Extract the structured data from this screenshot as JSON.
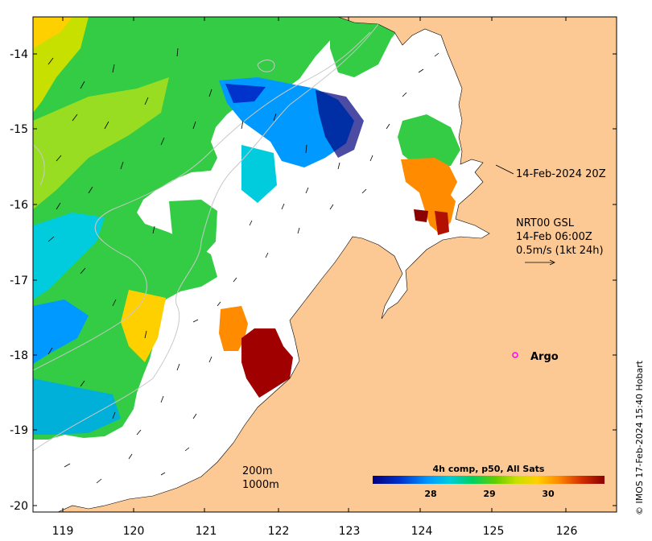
{
  "axes": {
    "x_ticks": [
      "119",
      "120",
      "121",
      "122",
      "123",
      "124",
      "125",
      "126"
    ],
    "y_ticks": [
      "-14",
      "-15",
      "-16",
      "-17",
      "-18",
      "-19",
      "-20"
    ]
  },
  "annotations": {
    "coast_time": "14-Feb-2024 20Z",
    "current_product": "NRT00 GSL",
    "current_time": "14-Feb 06:00Z",
    "current_scale": "0.5m/s (1kt 24h)",
    "argo_label": "Argo",
    "isobath_200": "200m",
    "isobath_1000": "1000m",
    "credit": "© IMOS 17-Feb-2024 15:40 Hobart"
  },
  "colorbar": {
    "title": "4h comp, p50, All Sats",
    "ticks": [
      "28",
      "29",
      "30"
    ],
    "colors": [
      "#00007f",
      "#0033cc",
      "#0099ff",
      "#00ccdd",
      "#00d060",
      "#66cc00",
      "#c8e000",
      "#ffd000",
      "#ff8c00",
      "#d43000",
      "#8b0000"
    ]
  },
  "colors": {
    "land": "#fcc894",
    "no_data": "#ffffff"
  }
}
